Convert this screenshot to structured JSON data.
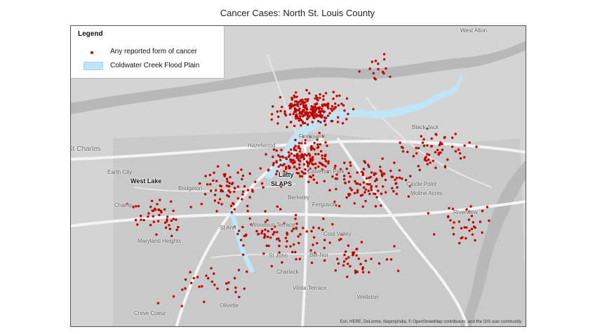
{
  "title": "Cancer Cases:  North St. Louis County",
  "legend": {
    "title": "Legend",
    "items": [
      {
        "label": "Any reported form of cancer",
        "symbol": "red-dot",
        "color": "#c00000"
      },
      {
        "label": "Coldwater Creek Flood Plain",
        "symbol": "blue-area",
        "color": "#bfe5f7"
      }
    ]
  },
  "places": [
    "West Alton",
    "St Charles",
    "Earth City",
    "Bridgeton",
    "Champ",
    "Maryland Heights",
    "Hazelwood",
    "Florissant",
    "Calverton Park",
    "Berkeley",
    "Ferguson",
    "Black Jack",
    "Castle Point",
    "Moline Acres",
    "Riverview",
    "Cool Valley",
    "Woodson Terrace",
    "St Ann",
    "St John",
    "Bel-Nor",
    "Charlack",
    "Vinita Terrace",
    "Wellston",
    "Olivette",
    "Creve Coeur"
  ],
  "sites": [
    {
      "name": "West Lake"
    },
    {
      "name": "Latty"
    },
    {
      "name": "SLAPS"
    }
  ],
  "attribution": "Esri, HERE, DeLorme, MapmyIndia, © OpenStreetMap contributors, and the GIS user community",
  "colors": {
    "case_dot": "#c00000",
    "flood_plain": "#bfe5f7",
    "river": "#b8b8b8",
    "land": "#d4d4d4",
    "urban": "#c9c9c9",
    "site_marker": "#a0522d"
  }
}
